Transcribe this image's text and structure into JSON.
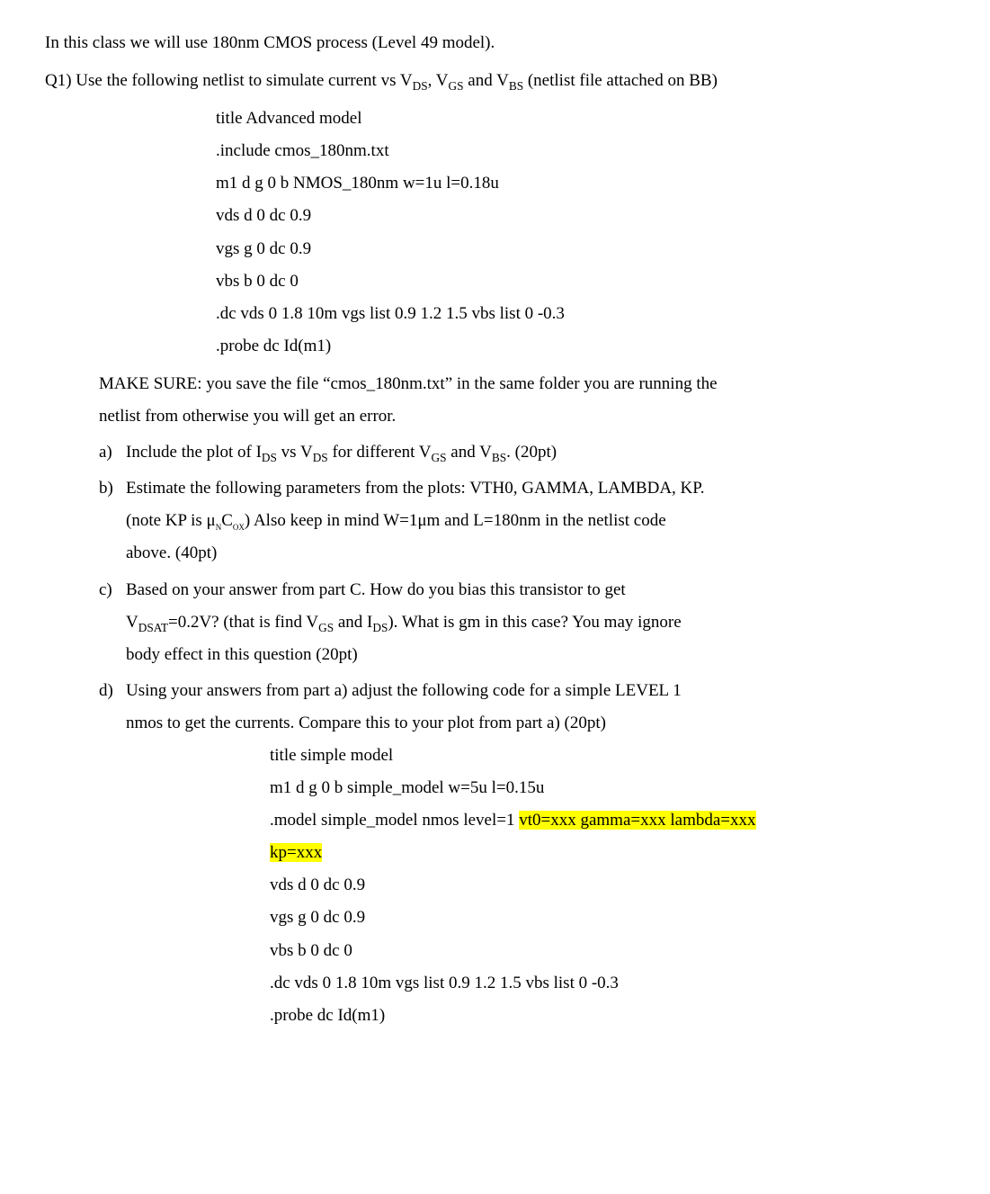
{
  "intro": "In this class we will use 180nm CMOS process (Level 49 model).",
  "q1_prefix": "Q1) Use the following netlist to simulate current vs V",
  "q1_sub1": "DS",
  "q1_mid1": ", V",
  "q1_sub2": "GS",
  "q1_mid2": " and V",
  "q1_sub3": "BS",
  "q1_suffix": " (netlist file attached on BB)",
  "netlist1": {
    "l1": "title Advanced model",
    "l2": ".include cmos_180nm.txt",
    "l3": "m1 d g 0 b NMOS_180nm   w=1u l=0.18u",
    "l4": "vds d 0 dc 0.9",
    "l5": "vgs g 0 dc 0.9",
    "l6": "vbs b 0 dc 0",
    "l7": ".dc vds 0 1.8 10m vgs list 0.9 1.2 1.5 vbs list 0 -0.3",
    "l8": ".probe dc Id(m1)"
  },
  "makesure1": "MAKE SURE: you save the file “cmos_180nm.txt” in the same folder you are running the",
  "makesure2": "netlist from otherwise you will get an error.",
  "part_a": {
    "marker": "a)",
    "t1": "Include the plot of I",
    "s1": "DS",
    "t2": " vs V",
    "s2": "DS",
    "t3": " for different V",
    "s3": "GS",
    "t4": " and V",
    "s4": "BS",
    "t5": ". (20pt)"
  },
  "part_b": {
    "marker": "b)",
    "l1": "Estimate the following parameters from the plots: VTH0, GAMMA, LAMBDA, KP.",
    "l2a": "(note KP is μ",
    "l2s1": "n",
    "l2b": "C",
    "l2s2": "ox",
    "l2c": ") Also keep in mind W=1μm and L=180nm in the netlist code",
    "l3": "above. (40pt)"
  },
  "part_c": {
    "marker": "c)",
    "l1": "Based on your answer from part C. How do you bias this transistor to get",
    "l2a": "V",
    "l2s1": "DSAT",
    "l2b": "=0.2V? (that is find V",
    "l2s2": "GS",
    "l2c": " and I",
    "l2s3": "DS",
    "l2d": "). What is gm in this case? You may ignore",
    "l3": "body effect in this question (20pt)"
  },
  "part_d": {
    "marker": "d)",
    "l1": "Using your answers from part a) adjust the following code for a simple LEVEL 1",
    "l2": "nmos to get the currents. Compare this to your plot from part a) (20pt)"
  },
  "netlist2": {
    "l1": "title simple model",
    "l2": "m1 d g 0 b simple_model w=5u l=0.15u",
    "l3a": ".model  simple_model  nmos  level=1  ",
    "l3b": "vt0=xxx   gamma=xxx   lambda=xxx",
    "l4": "kp=xxx",
    "l5": "vds d 0 dc 0.9",
    "l6": "vgs g 0 dc 0.9",
    "l7": "vbs b 0 dc 0",
    "l8": ".dc vds 0 1.8 10m vgs list 0.9 1.2 1.5 vbs list 0 -0.3",
    "l9": ".probe dc Id(m1)"
  }
}
